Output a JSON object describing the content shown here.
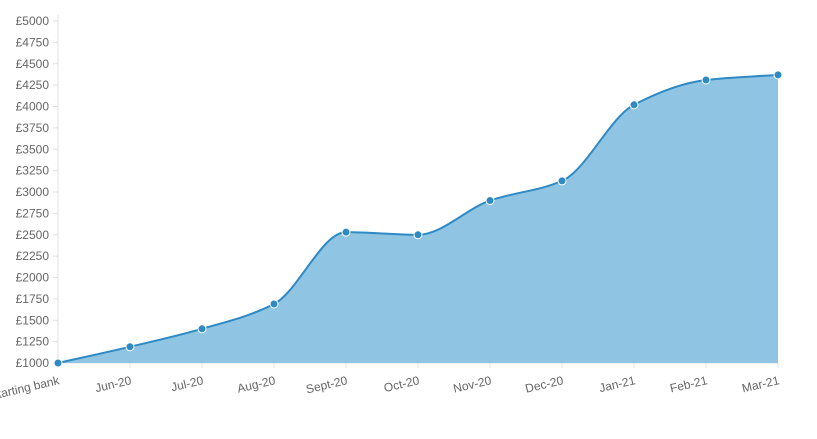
{
  "chart_data": {
    "type": "area",
    "categories": [
      "Starting bank",
      "Jun-20",
      "Jul-20",
      "Aug-20",
      "Sept-20",
      "Oct-20",
      "Nov-20",
      "Dec-20",
      "Jan-21",
      "Feb-21",
      "Mar-21"
    ],
    "series": [
      {
        "values": [
          1000,
          1190,
          1400,
          1690,
          2530,
          2500,
          2900,
          3130,
          4020,
          4310,
          4370
        ]
      }
    ],
    "ylim": [
      1000,
      5000
    ],
    "y_tick_step": 250,
    "y_tick_prefix": "£",
    "x_tick_rotation": "slanted",
    "grid": false,
    "legend": "none",
    "colors": {
      "line": "#2f8ac4",
      "fill": "#8fc5e2",
      "point": "#2f8ac4",
      "point_border": "#ffffff",
      "axis": "#e0e0e0",
      "tick_text": "#666666"
    }
  }
}
